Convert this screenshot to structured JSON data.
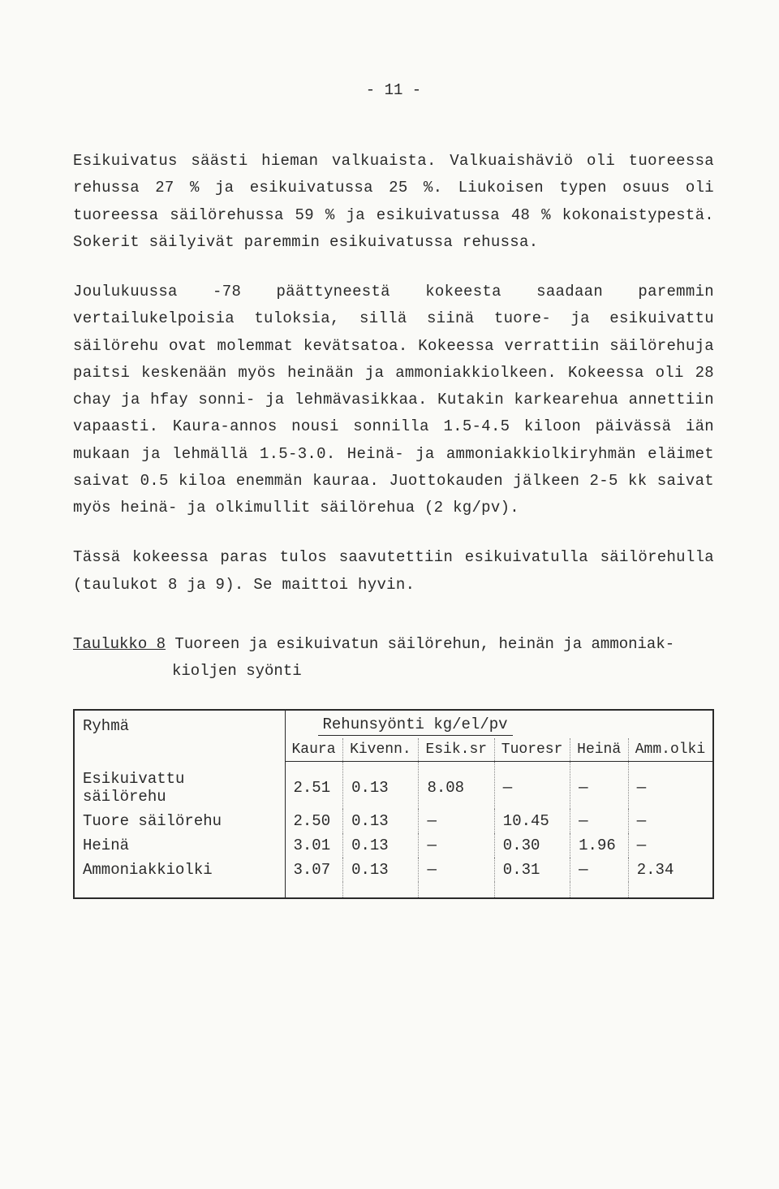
{
  "page_number": "- 11 -",
  "paragraphs": {
    "p1": "Esikuivatus säästi hieman valkuaista. Valkuaishäviö oli tuoreessa rehussa 27 % ja esikuivatussa 25 %. Liukoisen typen osuus oli tuoreessa säilörehussa 59 % ja esikuivatussa 48 % kokonaistypestä. Sokerit säilyivät paremmin esikuivatussa rehussa.",
    "p2": "Joulukuussa -78 päättyneestä kokeesta saadaan paremmin vertailukelpoisia tuloksia, sillä siinä tuore- ja esikuivattu säilörehu ovat molemmat kevätsatoa. Kokeessa verrattiin säilörehuja paitsi keskenään myös heinään ja ammoniakkiolkeen. Kokeessa oli 28 chay ja hfay sonni- ja lehmävasikkaa. Kutakin karkearehua annettiin vapaasti. Kaura-annos nousi sonnilla 1.5-4.5 kiloon päivässä iän mukaan ja lehmällä 1.5-3.0. Heinä- ja ammoniakkiolkiryhmän eläimet saivat 0.5 kiloa enemmän kauraa. Juottokauden jälkeen 2-5 kk saivat myös heinä- ja olkimullit säilörehua (2 kg/pv).",
    "p3": "Tässä kokeessa paras tulos saavutettiin esikuivatulla säilörehulla (taulukot 8 ja 9). Se maittoi hyvin."
  },
  "table": {
    "caption_label": "Taulukko 8",
    "caption_text_line1": " Tuoreen ja esikuivatun säilörehun, heinän ja ammoniak-",
    "caption_text_line2": "kioljen syönti",
    "group_header": "Ryhmä",
    "spanner": "Rehunsyönti kg/el/pv",
    "columns": [
      "Kaura",
      "Kivenn.",
      "Esik.sr",
      "Tuoresr",
      "Heinä",
      "Amm.olki"
    ],
    "rows": [
      {
        "label": "Esikuivattu säilörehu",
        "cells": [
          "2.51",
          "0.13",
          "8.08",
          "—",
          "—",
          "—"
        ]
      },
      {
        "label": "Tuore säilörehu",
        "cells": [
          "2.50",
          "0.13",
          "—",
          "10.45",
          "—",
          "—"
        ]
      },
      {
        "label": "Heinä",
        "cells": [
          "3.01",
          "0.13",
          "—",
          "0.30",
          "1.96",
          "—"
        ]
      },
      {
        "label": "Ammoniakkiolki",
        "cells": [
          "3.07",
          "0.13",
          "—",
          "0.31",
          "—",
          "2.34"
        ]
      }
    ]
  }
}
